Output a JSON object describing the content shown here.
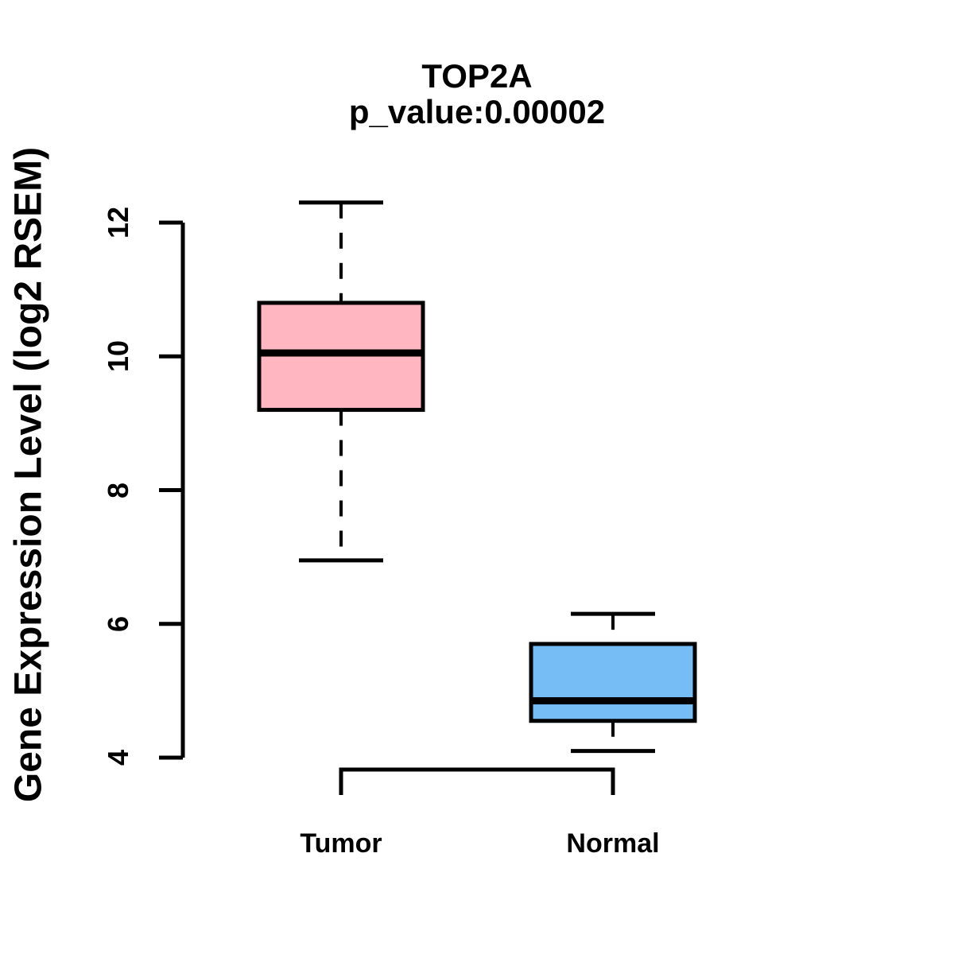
{
  "figure": {
    "background": "#FFFFFF",
    "text_color": "#000000"
  },
  "chart_data": {
    "type": "boxplot",
    "title": "TOP2A",
    "subtitle": "p_value:0.00002",
    "ylabel": "Gene Expression Level (log2 RSEM)",
    "xlabel": "",
    "categories": [
      "Tumor",
      "Normal"
    ],
    "ylim": [
      4,
      12
    ],
    "yticks": [
      4,
      6,
      8,
      10,
      12
    ],
    "grid": false,
    "legend": "none",
    "axis_color": "#000000",
    "box_border_color": "#000000",
    "median_color": "#000000",
    "series": [
      {
        "name": "Tumor",
        "color": "#FFB6C1",
        "whisker_low": 6.95,
        "q1": 9.2,
        "median": 10.05,
        "q3": 10.8,
        "whisker_high": 12.3
      },
      {
        "name": "Normal",
        "color": "#76BDF5",
        "whisker_low": 4.1,
        "q1": 4.55,
        "median": 4.85,
        "q3": 5.7,
        "whisker_high": 6.15
      }
    ]
  }
}
